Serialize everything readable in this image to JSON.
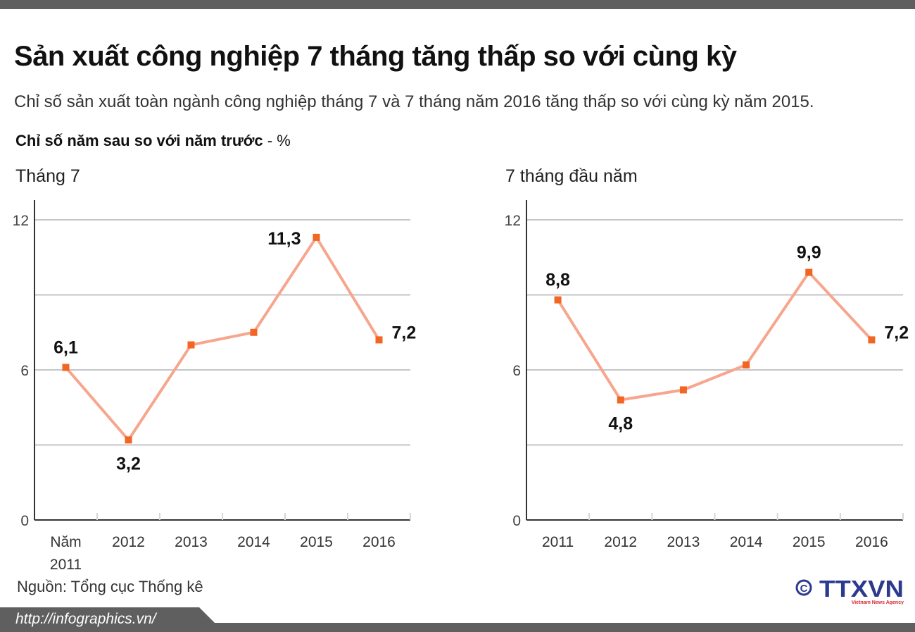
{
  "title": "Sản xuất công nghiệp 7 tháng tăng thấp so với cùng kỳ",
  "subtitle": "Chỉ số sản xuất toàn ngành công nghiệp tháng 7 và 7 tháng năm 2016 tăng thấp so với cùng kỳ năm 2015.",
  "unit_label": "Chỉ số năm sau so với năm trước",
  "unit_suffix": " - %",
  "source": "Nguồn: Tổng cục Thống kê",
  "url": "http://infographics.vn/",
  "logo_text": "TTXVN",
  "logo_sub": "Vietnam News Agency",
  "colors": {
    "line": "#f7a68e",
    "marker": "#f26522",
    "grid": "#c4c6c9",
    "footer": "#5f5f5f"
  },
  "chart_data": [
    {
      "type": "line",
      "title": "Tháng 7",
      "categories": [
        "Năm 2011",
        "2012",
        "2013",
        "2014",
        "2015",
        "2016"
      ],
      "values": [
        6.1,
        3.2,
        7.0,
        7.5,
        11.3,
        7.2
      ],
      "data_labels": [
        "6,1",
        "3,2",
        "",
        "",
        "11,3",
        "7,2"
      ],
      "yticks": [
        "0",
        "6",
        "12"
      ],
      "ylim": [
        0,
        12
      ],
      "grid": true
    },
    {
      "type": "line",
      "title": "7 tháng đầu năm",
      "categories": [
        "2011",
        "2012",
        "2013",
        "2014",
        "2015",
        "2016"
      ],
      "values": [
        8.8,
        4.8,
        5.2,
        6.2,
        9.9,
        7.2
      ],
      "data_labels": [
        "8,8",
        "4,8",
        "",
        "",
        "9,9",
        "7,2"
      ],
      "yticks": [
        "0",
        "6",
        "12"
      ],
      "ylim": [
        0,
        12
      ],
      "grid": true
    }
  ]
}
